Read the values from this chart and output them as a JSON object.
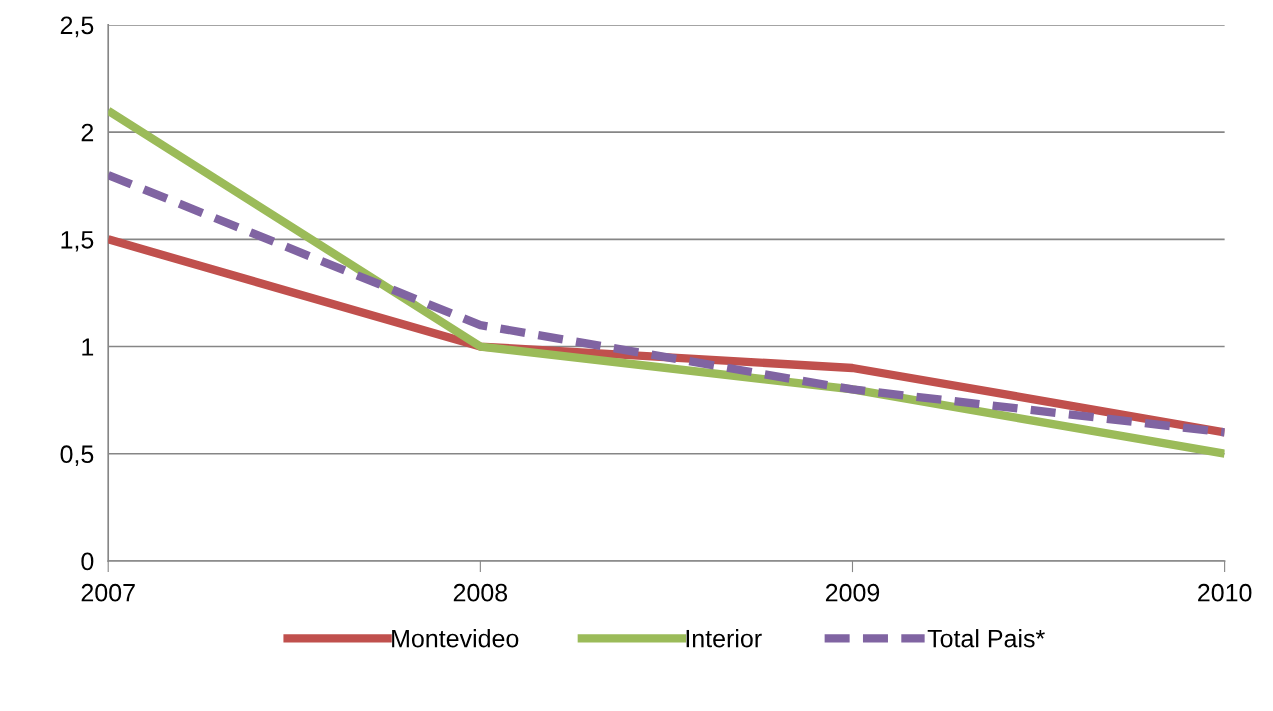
{
  "chart_data": {
    "type": "line",
    "categories": [
      "2007",
      "2008",
      "2009",
      "2010"
    ],
    "series": [
      {
        "name": "Montevideo",
        "color": "#c0504d",
        "values": [
          1.5,
          1.0,
          0.9,
          0.6
        ],
        "line_style": "solid"
      },
      {
        "name": "Interior",
        "color": "#9bbb59",
        "values": [
          2.1,
          1.0,
          0.8,
          0.5
        ],
        "line_style": "solid"
      },
      {
        "name": "Total Pais*",
        "color": "#8064a2",
        "values": [
          1.8,
          1.1,
          0.8,
          0.6
        ],
        "line_style": "dashed"
      }
    ],
    "ylim": [
      0,
      2.5
    ],
    "yticks": [
      0,
      {
        "value": 0.5,
        "label": "0,5"
      },
      1,
      {
        "value": 1.5,
        "label": "1,5"
      },
      2,
      {
        "value": 2.5,
        "label": "2,5"
      }
    ],
    "grid": "y",
    "legend": "bottom",
    "marker": "none"
  }
}
